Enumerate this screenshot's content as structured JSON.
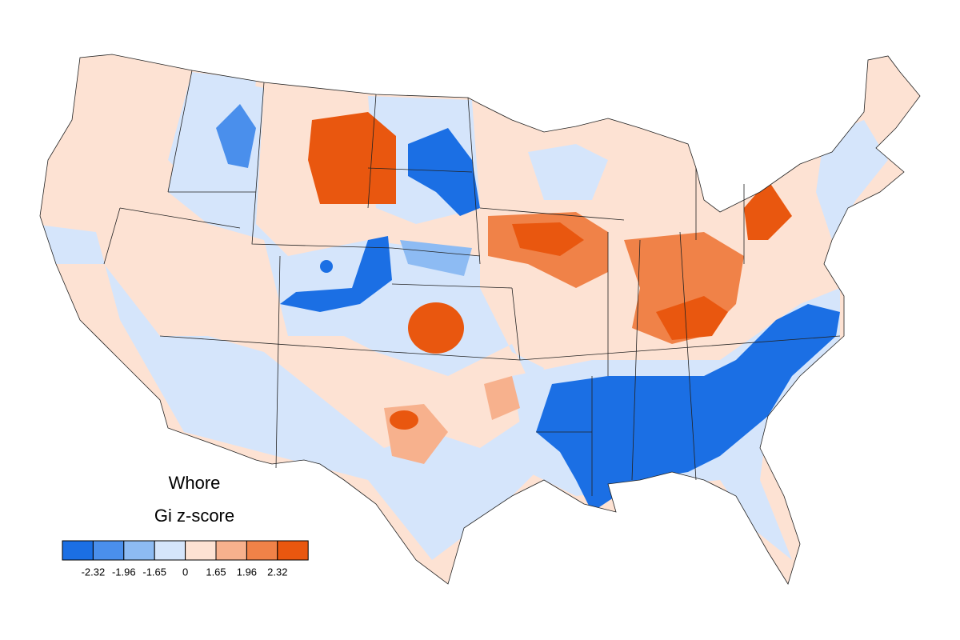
{
  "title": "Whore",
  "subtitle": "Gi z-score",
  "legend": {
    "colors": [
      "#1b6fe4",
      "#4a8fec",
      "#8dbbf3",
      "#d5e5fb",
      "#fde2d3",
      "#f7b18d",
      "#f08248",
      "#e9570f"
    ],
    "ticks": [
      -2.32,
      -1.96,
      -1.65,
      0,
      1.65,
      1.96,
      2.32
    ]
  }
}
